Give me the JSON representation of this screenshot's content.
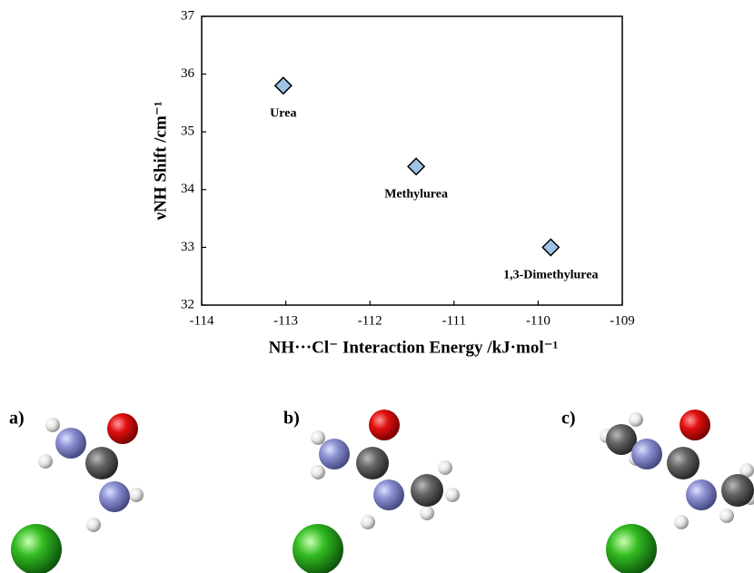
{
  "chart_data": {
    "type": "scatter",
    "x_label": "NH···Cl⁻ Interaction Energy /kJ·mol⁻¹",
    "y_label": "νNH Shift /cm⁻¹",
    "x": [
      -113.03,
      -111.45,
      -109.85
    ],
    "values": [
      35.8,
      34.4,
      33.0
    ],
    "labels": [
      "Urea",
      "Methylurea",
      "1,3-Dimethylurea"
    ],
    "color": "#9fc3e7",
    "xlim": [
      -114,
      -109
    ],
    "xticks": [
      -114,
      -113,
      -112,
      -111,
      -110,
      -109
    ],
    "ylim": [
      32,
      37
    ],
    "yticks": [
      32,
      33,
      34,
      35,
      36,
      37
    ],
    "grid": false
  },
  "panels": [
    "a)",
    "b)",
    "c)"
  ]
}
